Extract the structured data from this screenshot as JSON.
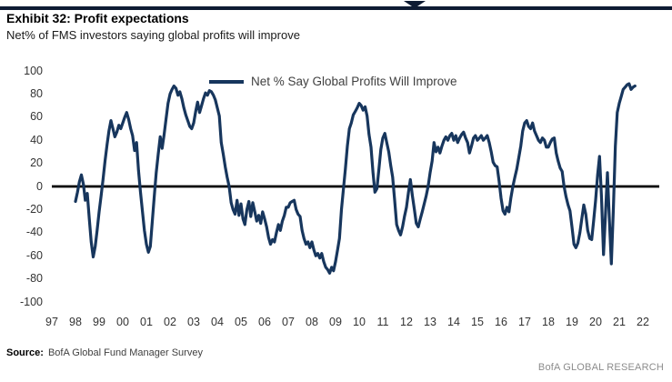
{
  "page": {
    "background": "#ffffff"
  },
  "header": {
    "rule_color": "#0e1b33"
  },
  "report": {
    "title": "Exhibit 32: Profit expectations",
    "subtitle": "Net% of FMS investors saying global profits will improve"
  },
  "footer": {
    "source_label": "Source:",
    "source_text": "BofA Global Fund Manager Survey",
    "brand": "BofA GLOBAL RESEARCH"
  },
  "chart_data": {
    "type": "line",
    "title": "Exhibit 32: Profit expectations",
    "subtitle": "Net% of FMS investors saying global profits will improve",
    "legend_label": "Net % Say Global Profits Will Improve",
    "legend_position": "top-center",
    "grid": false,
    "zero_line": true,
    "line_color": "#17365d",
    "zero_line_color": "#000000",
    "ylim": [
      -100,
      100
    ],
    "y_ticks": [
      100,
      80,
      60,
      40,
      20,
      0,
      -20,
      -40,
      -60,
      -80,
      -100
    ],
    "x_tick_labels": [
      "97",
      "98",
      "99",
      "00",
      "01",
      "02",
      "03",
      "04",
      "05",
      "06",
      "07",
      "08",
      "09",
      "10",
      "11",
      "12",
      "13",
      "14",
      "15",
      "16",
      "17",
      "18",
      "19",
      "20",
      "21",
      "22"
    ],
    "x_range_years": [
      1997,
      2022
    ],
    "series": [
      {
        "name": "Net % Say Global Profits Will Improve",
        "start_year": 1998,
        "start_month": 1,
        "frequency": "monthly",
        "values": [
          -13,
          -5,
          4,
          10,
          2,
          -12,
          -6,
          -28,
          -48,
          -61,
          -52,
          -38,
          -22,
          -8,
          6,
          22,
          36,
          48,
          57,
          50,
          43,
          47,
          53,
          50,
          55,
          60,
          64,
          58,
          50,
          44,
          31,
          38,
          14,
          -5,
          -22,
          -38,
          -50,
          -57,
          -52,
          -30,
          -8,
          12,
          28,
          43,
          33,
          45,
          59,
          72,
          80,
          84,
          87,
          85,
          79,
          82,
          76,
          68,
          62,
          57,
          52,
          50,
          55,
          65,
          73,
          64,
          70,
          76,
          81,
          79,
          83,
          82,
          79,
          75,
          68,
          61,
          38,
          28,
          17,
          8,
          0,
          -14,
          -20,
          -24,
          -12,
          -25,
          -15,
          -28,
          -33,
          -20,
          -13,
          -26,
          -14,
          -22,
          -30,
          -25,
          -32,
          -22,
          -28,
          -35,
          -44,
          -50,
          -46,
          -48,
          -40,
          -33,
          -38,
          -30,
          -25,
          -18,
          -18,
          -14,
          -13,
          -12,
          -20,
          -24,
          -26,
          -38,
          -45,
          -50,
          -48,
          -53,
          -48,
          -55,
          -60,
          -58,
          -62,
          -58,
          -65,
          -70,
          -72,
          -75,
          -70,
          -73,
          -65,
          -55,
          -45,
          -20,
          -2,
          15,
          35,
          50,
          55,
          62,
          65,
          68,
          72,
          70,
          66,
          69,
          61,
          45,
          34,
          12,
          -5,
          -2,
          15,
          32,
          42,
          46,
          38,
          30,
          18,
          8,
          -12,
          -33,
          -38,
          -42,
          -35,
          -26,
          -18,
          -5,
          6,
          -8,
          -20,
          -32,
          -35,
          -28,
          -22,
          -15,
          -8,
          0,
          12,
          22,
          38,
          30,
          34,
          29,
          35,
          40,
          43,
          40,
          44,
          46,
          40,
          44,
          38,
          42,
          45,
          47,
          42,
          38,
          29,
          35,
          42,
          44,
          40,
          42,
          44,
          40,
          42,
          44,
          38,
          30,
          21,
          18,
          17,
          5,
          -10,
          -21,
          -24,
          -18,
          -22,
          -10,
          0,
          8,
          15,
          25,
          35,
          48,
          55,
          57,
          52,
          50,
          55,
          48,
          44,
          40,
          38,
          42,
          40,
          34,
          34,
          38,
          41,
          42,
          29,
          22,
          16,
          13,
          0,
          -9,
          -16,
          -21,
          -35,
          -50,
          -53,
          -49,
          -40,
          -28,
          -16,
          -24,
          -38,
          -45,
          -46,
          -30,
          -12,
          10,
          26,
          -10,
          -59,
          -25,
          12,
          -30,
          -67,
          -20,
          35,
          64,
          72,
          78,
          84,
          86,
          88,
          89,
          84,
          86,
          87
        ]
      }
    ]
  }
}
